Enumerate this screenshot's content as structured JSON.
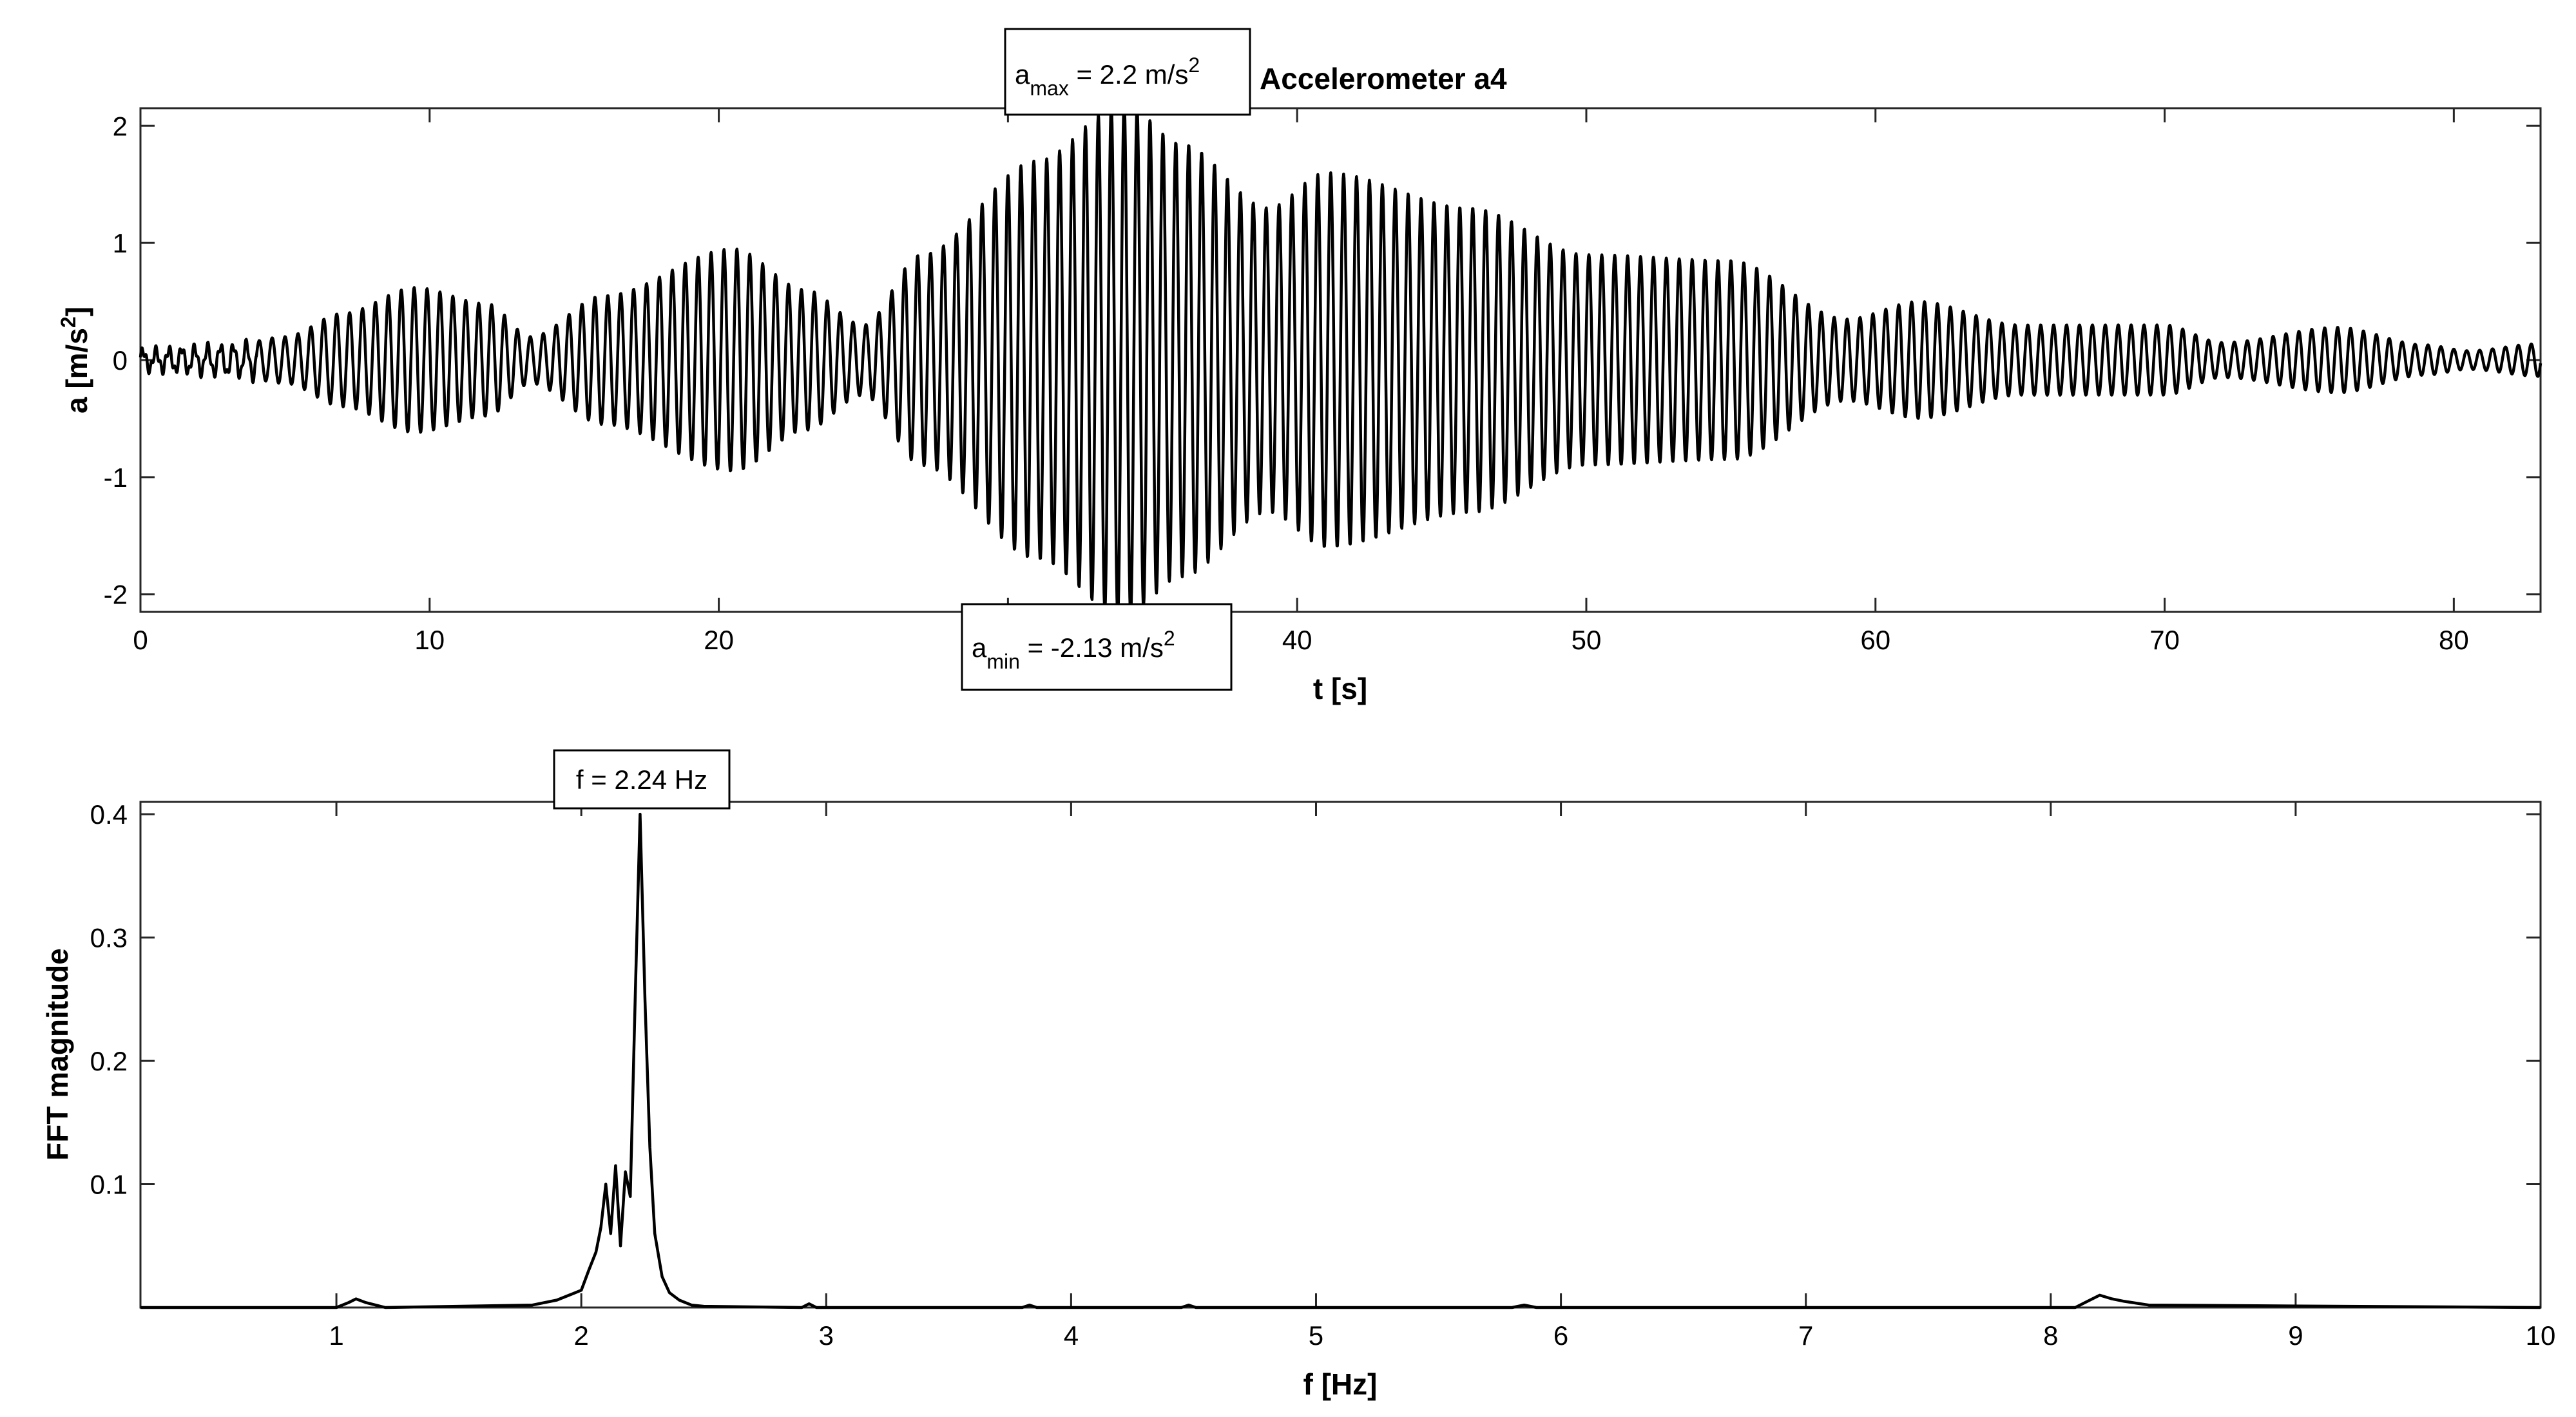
{
  "chart_data": [
    {
      "type": "line",
      "title": "Accelerometer a4",
      "xlabel": "t [s]",
      "ylabel": "a [m/s²]",
      "ylabel_parts": {
        "main": "a [m/s",
        "sup": "2",
        "end": "]"
      },
      "xlim": [
        0,
        83
      ],
      "ylim": [
        -2.15,
        2.15
      ],
      "xticks": [
        0,
        10,
        20,
        30,
        40,
        50,
        60,
        70,
        80
      ],
      "xtick_labels": [
        "0",
        "10",
        "20",
        "30",
        "40",
        "50",
        "60",
        "70",
        "80"
      ],
      "yticks": [
        -2,
        -1,
        0,
        1,
        2
      ],
      "ytick_labels": [
        "-2",
        "-1",
        "0",
        "1",
        "2"
      ],
      "grid": false,
      "line_color": "#000000",
      "dominant_frequency_hz": 2.24,
      "envelope": {
        "t": [
          0,
          3,
          5,
          7,
          9.5,
          12,
          13.5,
          16,
          20.5,
          23,
          25,
          27,
          31,
          34,
          36,
          39,
          41,
          46,
          50,
          55,
          59,
          61.5,
          65,
          70,
          72,
          76,
          79,
          80.5,
          83
        ],
        "amp": [
          0.08,
          0.12,
          0.2,
          0.4,
          0.62,
          0.48,
          0.2,
          0.55,
          0.95,
          0.6,
          0.3,
          0.9,
          1.7,
          2.2,
          1.85,
          1.3,
          1.6,
          1.3,
          0.9,
          0.85,
          0.35,
          0.5,
          0.3,
          0.3,
          0.15,
          0.28,
          0.13,
          0.08,
          0.14
        ]
      },
      "annotations": [
        {
          "name": "amax",
          "base": "a",
          "sub": "max",
          "value": " = 2.2 m/s",
          "sup": "2",
          "x": 34,
          "y": 2.2
        },
        {
          "name": "amin",
          "base": "a",
          "sub": "min",
          "value": " = -2.13 m/s",
          "sup": "2",
          "x": 33,
          "y": -2.13
        }
      ]
    },
    {
      "type": "line",
      "title": "",
      "xlabel": "f [Hz]",
      "ylabel": "FFT magnitude",
      "xlim": [
        0.2,
        10
      ],
      "ylim": [
        0,
        0.41
      ],
      "xticks": [
        1,
        2,
        3,
        4,
        5,
        6,
        7,
        8,
        9,
        10
      ],
      "xtick_labels": [
        "1",
        "2",
        "3",
        "4",
        "5",
        "6",
        "7",
        "8",
        "9",
        "10"
      ],
      "yticks": [
        0.1,
        0.2,
        0.3,
        0.4
      ],
      "ytick_labels": [
        "0.1",
        "0.2",
        "0.3",
        "0.4"
      ],
      "grid": false,
      "line_color": "#000000",
      "x": [
        0.2,
        1.0,
        1.05,
        1.08,
        1.12,
        1.2,
        1.8,
        1.9,
        1.95,
        2.0,
        2.03,
        2.06,
        2.08,
        2.1,
        2.12,
        2.14,
        2.16,
        2.18,
        2.2,
        2.22,
        2.24,
        2.26,
        2.28,
        2.3,
        2.33,
        2.36,
        2.4,
        2.45,
        2.5,
        2.9,
        2.93,
        2.96,
        3.8,
        3.83,
        3.86,
        4.45,
        4.48,
        4.51,
        5.8,
        5.85,
        5.9,
        8.1,
        8.15,
        8.2,
        8.25,
        8.3,
        8.4,
        10.0
      ],
      "y": [
        0.0,
        0.0,
        0.004,
        0.007,
        0.004,
        0.0,
        0.002,
        0.006,
        0.01,
        0.014,
        0.03,
        0.045,
        0.065,
        0.1,
        0.06,
        0.115,
        0.05,
        0.11,
        0.09,
        0.25,
        0.4,
        0.25,
        0.13,
        0.06,
        0.025,
        0.012,
        0.006,
        0.002,
        0.001,
        0.0,
        0.003,
        0.0,
        0.0,
        0.002,
        0.0,
        0.0,
        0.002,
        0.0,
        0.0,
        0.002,
        0.0,
        0.0,
        0.005,
        0.01,
        0.007,
        0.005,
        0.002,
        0.0
      ],
      "annotations": [
        {
          "name": "fpeak",
          "text": "f = 2.24 Hz",
          "x": 2.24,
          "y": 0.4
        }
      ]
    }
  ]
}
